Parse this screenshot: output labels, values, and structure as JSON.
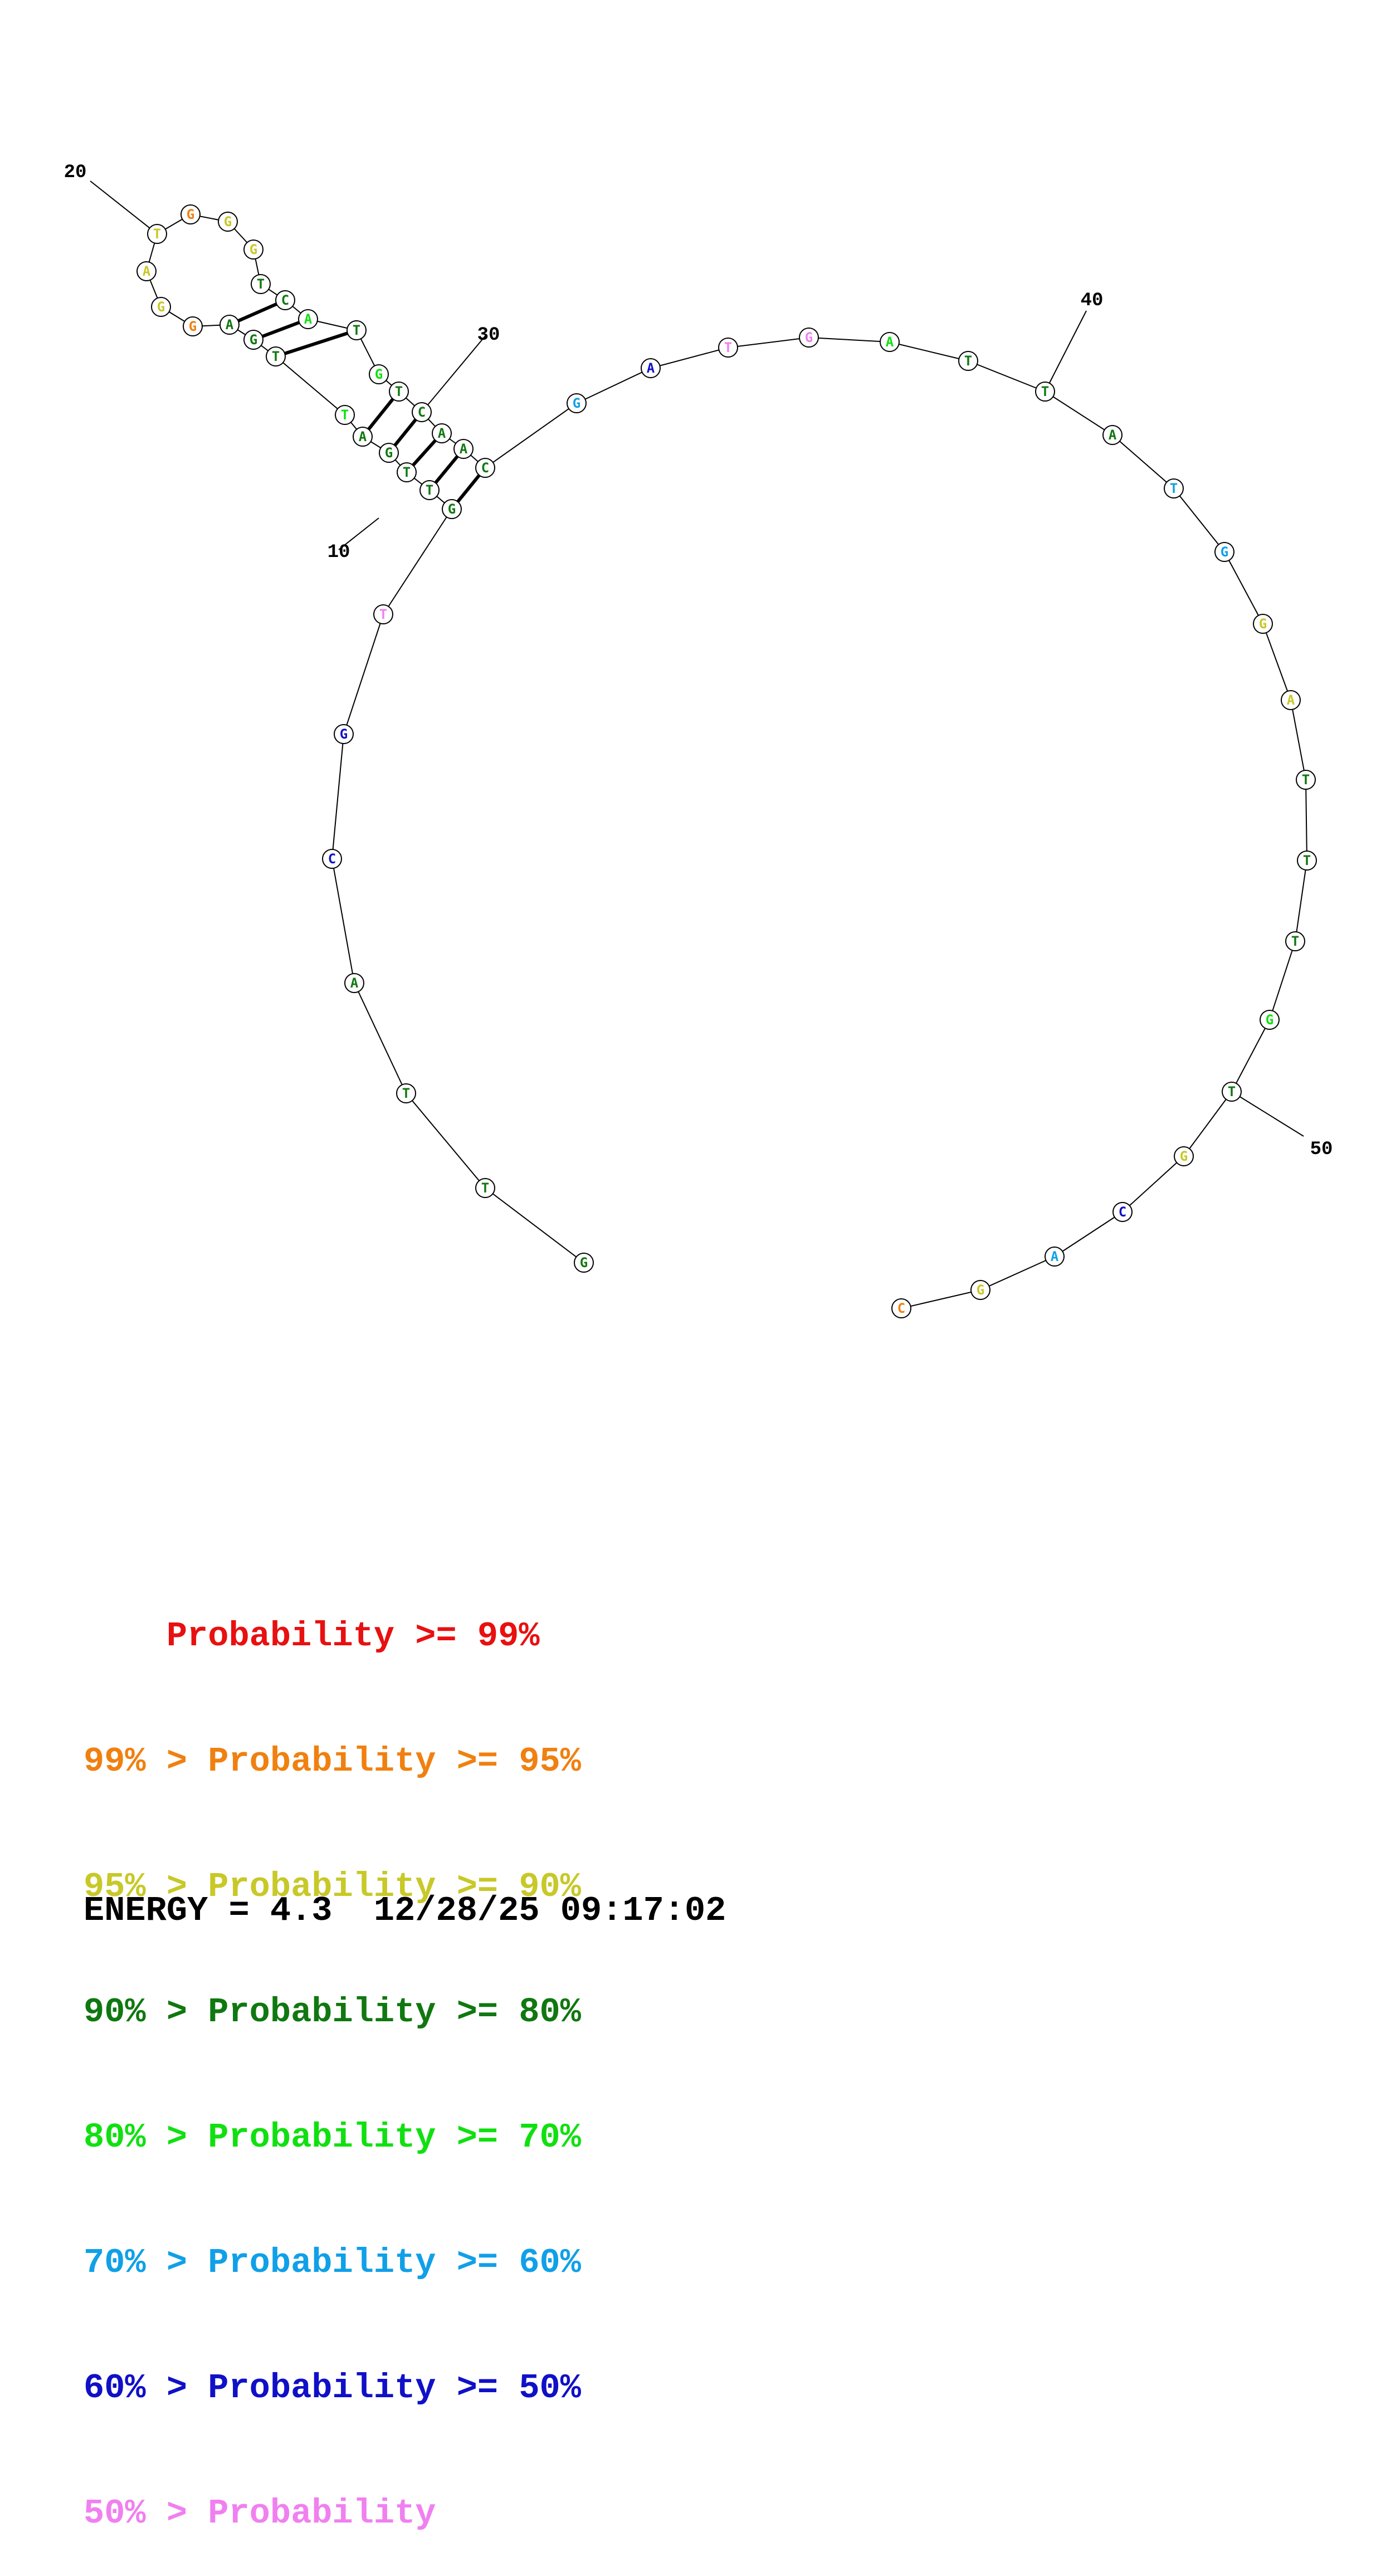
{
  "colors": {
    "p99": "#e81010",
    "p95": "#f08010",
    "p90": "#c8c828",
    "p80": "#107810",
    "p70": "#10e010",
    "p60": "#10a0e8",
    "p50": "#1010c8",
    "plow": "#f080f0"
  },
  "sequence": {
    "nucleotides": [
      {
        "n": 1,
        "base": "G",
        "color": "p80"
      },
      {
        "n": 2,
        "base": "T",
        "color": "p80"
      },
      {
        "n": 3,
        "base": "T",
        "color": "p80"
      },
      {
        "n": 4,
        "base": "A",
        "color": "p80"
      },
      {
        "n": 5,
        "base": "C",
        "color": "p50"
      },
      {
        "n": 6,
        "base": "G",
        "color": "p50"
      },
      {
        "n": 7,
        "base": "T",
        "color": "plow"
      },
      {
        "n": 8,
        "base": "G",
        "color": "p80"
      },
      {
        "n": 9,
        "base": "T",
        "color": "p80"
      },
      {
        "n": 10,
        "base": "T",
        "color": "p80"
      },
      {
        "n": 11,
        "base": "G",
        "color": "p80"
      },
      {
        "n": 12,
        "base": "A",
        "color": "p80"
      },
      {
        "n": 13,
        "base": "T",
        "color": "p70"
      },
      {
        "n": 14,
        "base": "T",
        "color": "p80"
      },
      {
        "n": 15,
        "base": "G",
        "color": "p80"
      },
      {
        "n": 16,
        "base": "A",
        "color": "p80"
      },
      {
        "n": 17,
        "base": "G",
        "color": "p95"
      },
      {
        "n": 18,
        "base": "G",
        "color": "p90"
      },
      {
        "n": 19,
        "base": "A",
        "color": "p90"
      },
      {
        "n": 20,
        "base": "T",
        "color": "p90"
      },
      {
        "n": 21,
        "base": "G",
        "color": "p95"
      },
      {
        "n": 22,
        "base": "G",
        "color": "p90"
      },
      {
        "n": 23,
        "base": "G",
        "color": "p90"
      },
      {
        "n": 24,
        "base": "T",
        "color": "p80"
      },
      {
        "n": 25,
        "base": "C",
        "color": "p80"
      },
      {
        "n": 26,
        "base": "A",
        "color": "p70"
      },
      {
        "n": 27,
        "base": "T",
        "color": "p80"
      },
      {
        "n": 28,
        "base": "G",
        "color": "p70"
      },
      {
        "n": 29,
        "base": "T",
        "color": "p80"
      },
      {
        "n": 30,
        "base": "C",
        "color": "p80"
      },
      {
        "n": 31,
        "base": "A",
        "color": "p80"
      },
      {
        "n": 32,
        "base": "A",
        "color": "p80"
      },
      {
        "n": 33,
        "base": "C",
        "color": "p80"
      },
      {
        "n": 34,
        "base": "G",
        "color": "p60"
      },
      {
        "n": 35,
        "base": "A",
        "color": "p50"
      },
      {
        "n": 36,
        "base": "T",
        "color": "plow"
      },
      {
        "n": 37,
        "base": "G",
        "color": "plow"
      },
      {
        "n": 38,
        "base": "A",
        "color": "p70"
      },
      {
        "n": 39,
        "base": "T",
        "color": "p80"
      },
      {
        "n": 40,
        "base": "T",
        "color": "p80"
      },
      {
        "n": 41,
        "base": "A",
        "color": "p80"
      },
      {
        "n": 42,
        "base": "T",
        "color": "p60"
      },
      {
        "n": 43,
        "base": "G",
        "color": "p60"
      },
      {
        "n": 44,
        "base": "G",
        "color": "p90"
      },
      {
        "n": 45,
        "base": "A",
        "color": "p90"
      },
      {
        "n": 46,
        "base": "T",
        "color": "p80"
      },
      {
        "n": 47,
        "base": "T",
        "color": "p80"
      },
      {
        "n": 48,
        "base": "T",
        "color": "p80"
      },
      {
        "n": 49,
        "base": "G",
        "color": "p70"
      },
      {
        "n": 50,
        "base": "T",
        "color": "p80"
      },
      {
        "n": 51,
        "base": "G",
        "color": "p90"
      },
      {
        "n": 52,
        "base": "C",
        "color": "p50"
      },
      {
        "n": 53,
        "base": "A",
        "color": "p60"
      },
      {
        "n": 54,
        "base": "G",
        "color": "p90"
      },
      {
        "n": 55,
        "base": "C",
        "color": "p95"
      }
    ],
    "pairs": [
      [
        8,
        33
      ],
      [
        9,
        32
      ],
      [
        10,
        31
      ],
      [
        11,
        30
      ],
      [
        12,
        29
      ],
      [
        14,
        27
      ],
      [
        15,
        26
      ],
      [
        16,
        25
      ]
    ],
    "position_labels": [
      "10",
      "20",
      "30",
      "40",
      "50"
    ]
  },
  "legend": [
    {
      "prefix": "    ",
      "text": "Probability >= 99%",
      "color": "p99"
    },
    {
      "prefix": "99% > ",
      "text": "Probability >= 95%",
      "color": "p95"
    },
    {
      "prefix": "95% > ",
      "text": "Probability >= 90%",
      "color": "p90"
    },
    {
      "prefix": "90% > ",
      "text": "Probability >= 80%",
      "color": "p80"
    },
    {
      "prefix": "80% > ",
      "text": "Probability >= 70%",
      "color": "p70"
    },
    {
      "prefix": "70% > ",
      "text": "Probability >= 60%",
      "color": "p60"
    },
    {
      "prefix": "60% > ",
      "text": "Probability >= 50%",
      "color": "p50"
    },
    {
      "prefix": "50% > ",
      "text": "Probability",
      "color": "plow"
    }
  ],
  "footer": {
    "energy": "ENERGY = 4.3  12/28/25 09:17:02"
  }
}
